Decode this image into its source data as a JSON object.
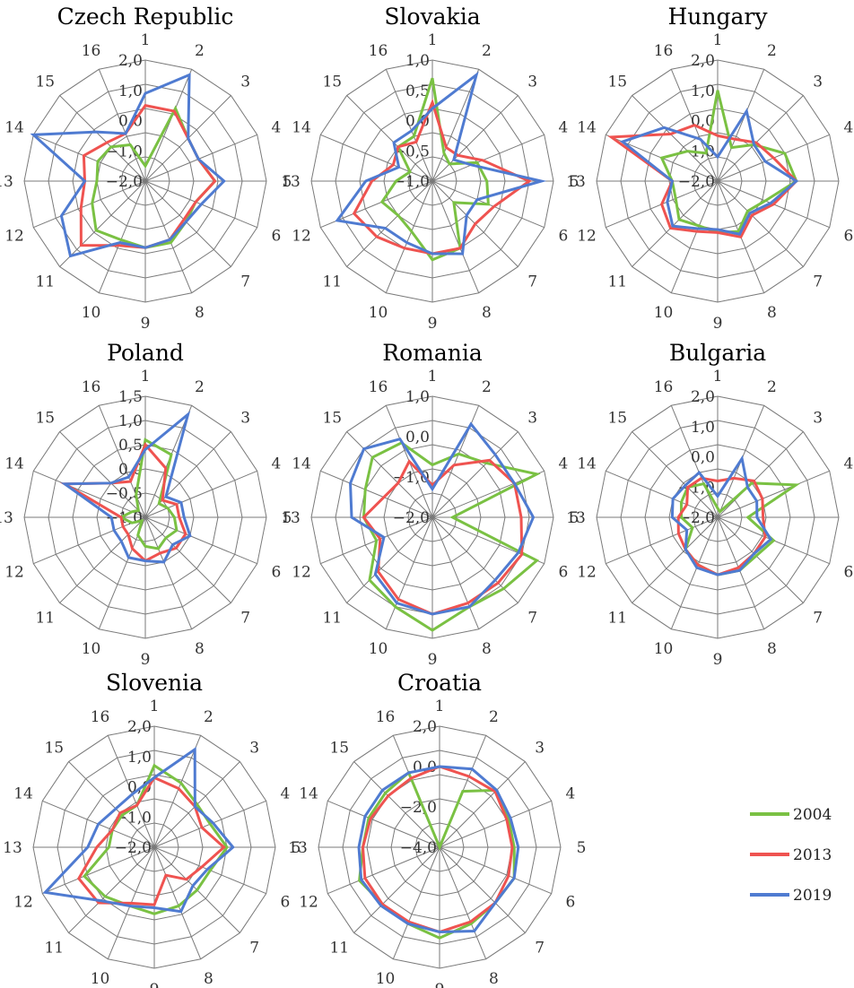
{
  "figure": {
    "legend": [
      {
        "name": "2004",
        "color": "#7ac143"
      },
      {
        "name": "2013",
        "color": "#ef5350"
      },
      {
        "name": "2019",
        "color": "#4f7bd1"
      }
    ]
  },
  "chart_data": [
    {
      "type": "radar",
      "title": "Czech Republic",
      "categories": [
        "1",
        "2",
        "3",
        "4",
        "5",
        "6",
        "7",
        "8",
        "9",
        "10",
        "11",
        "12",
        "13",
        "14",
        "15",
        "16"
      ],
      "rlim": [
        -2.0,
        2.0
      ],
      "ticks": [
        "−2,0",
        "−1,0",
        "0,0",
        "1,0",
        "2,0"
      ],
      "series": [
        {
          "name": "2004",
          "values": [
            -1.5,
            0.6,
            0.0,
            -0.1,
            0.3,
            -0.2,
            -0.1,
            0.2,
            0.2,
            0.1,
            0.3,
            -0.1,
            -0.4,
            -0.3,
            -0.4,
            -0.7
          ]
        },
        {
          "name": "2013",
          "values": [
            0.5,
            0.5,
            0.0,
            -0.1,
            0.3,
            -0.2,
            -0.2,
            0.1,
            0.2,
            0.3,
            1.0,
            0.3,
            0.0,
            0.2,
            -0.2,
            -0.3
          ]
        },
        {
          "name": "2019",
          "values": [
            0.9,
            1.8,
            0.0,
            -0.1,
            0.6,
            0.0,
            -0.1,
            0.1,
            0.2,
            0.2,
            1.5,
            1.0,
            0.0,
            2.0,
            0.3,
            -0.3
          ]
        }
      ]
    },
    {
      "type": "radar",
      "title": "Slovakia",
      "categories": [
        "1",
        "2",
        "3",
        "4",
        "5",
        "6",
        "7",
        "8",
        "9",
        "10",
        "11",
        "12",
        "13",
        "14",
        "15",
        "16"
      ],
      "rlim": [
        -1.0,
        1.0
      ],
      "ticks": [
        "−1,0",
        "−0,5",
        "0,0",
        "0,5",
        "1,0"
      ],
      "series": [
        {
          "name": "2004",
          "values": [
            0.7,
            -0.5,
            -0.6,
            -0.2,
            -0.1,
            0.0,
            -0.5,
            0.2,
            0.3,
            -0.1,
            -0.2,
            -0.1,
            -0.4,
            -0.6,
            -0.2,
            -0.2
          ]
        },
        {
          "name": "2013",
          "values": [
            0.3,
            -0.4,
            -0.4,
            -0.1,
            0.6,
            0.1,
            0.0,
            0.2,
            0.2,
            0.2,
            0.3,
            0.4,
            0.0,
            -0.3,
            -0.2,
            -0.3
          ]
        },
        {
          "name": "2019",
          "values": [
            0.2,
            0.9,
            -0.5,
            -0.3,
            0.8,
            -0.2,
            -0.2,
            0.3,
            0.2,
            0.1,
            0.1,
            0.7,
            0.1,
            -0.4,
            -0.1,
            -0.1
          ]
        }
      ]
    },
    {
      "type": "radar",
      "title": "Hungary",
      "categories": [
        "1",
        "2",
        "3",
        "4",
        "5",
        "6",
        "7",
        "8",
        "9",
        "10",
        "11",
        "12",
        "13",
        "14",
        "15",
        "16"
      ],
      "rlim": [
        -2.0,
        2.0
      ],
      "ticks": [
        "−2,0",
        "−1,0",
        "0,0",
        "1,0",
        "2,0"
      ],
      "series": [
        {
          "name": "2004",
          "values": [
            1.0,
            -0.8,
            -0.3,
            0.4,
            0.6,
            -0.3,
            -0.6,
            -0.2,
            -0.3,
            -0.4,
            -0.2,
            -0.5,
            -0.5,
            0.0,
            -0.6,
            -1.0
          ]
        },
        {
          "name": "2013",
          "values": [
            -0.5,
            -0.5,
            -0.2,
            0.0,
            0.6,
            0.0,
            -0.4,
            0.0,
            -0.3,
            -0.2,
            0.2,
            0.0,
            -0.5,
            1.8,
            0.2,
            0.0
          ]
        },
        {
          "name": "2019",
          "values": [
            -1.2,
            0.5,
            -0.3,
            -0.3,
            0.6,
            -0.1,
            -0.5,
            -0.1,
            -0.4,
            -0.3,
            0.1,
            -0.2,
            -0.5,
            1.4,
            0.5,
            -0.5
          ]
        }
      ]
    },
    {
      "type": "radar",
      "title": "Poland",
      "categories": [
        "1",
        "2",
        "3",
        "4",
        "5",
        "6",
        "7",
        "8",
        "9",
        "10",
        "11",
        "12",
        "13",
        "14",
        "15",
        "16"
      ],
      "rlim": [
        -1.0,
        1.5
      ],
      "ticks": [
        "−1,0",
        "−0,5",
        "0,0",
        "0,5",
        "1,0",
        "1,5"
      ],
      "series": [
        {
          "name": "2004",
          "values": [
            0.6,
            0.4,
            -0.6,
            -0.5,
            -0.4,
            -0.3,
            -0.4,
            -0.3,
            -0.4,
            -0.6,
            -0.9,
            -0.7,
            -0.5,
            -0.7,
            -0.8,
            -0.5
          ]
        },
        {
          "name": "2013",
          "values": [
            0.5,
            0.1,
            -0.5,
            -0.3,
            -0.3,
            -0.1,
            -0.1,
            -0.2,
            -0.1,
            -0.3,
            -0.5,
            -0.5,
            -0.5,
            0.8,
            0.0,
            -0.2
          ]
        },
        {
          "name": "2019",
          "values": [
            0.4,
            1.3,
            -0.4,
            -0.2,
            -0.2,
            0.0,
            -0.2,
            0.0,
            -0.1,
            -0.1,
            -0.3,
            -0.3,
            -0.3,
            0.8,
            0.0,
            -0.1
          ]
        }
      ]
    },
    {
      "type": "radar",
      "title": "Romania",
      "categories": [
        "1",
        "2",
        "3",
        "4",
        "5",
        "6",
        "7",
        "8",
        "9",
        "10",
        "11",
        "12",
        "13",
        "14",
        "15",
        "16"
      ],
      "rlim": [
        -2.0,
        1.0
      ],
      "ticks": [
        "−2,0",
        "−1,0",
        "0,0",
        "1,0"
      ],
      "series": [
        {
          "name": "2004",
          "values": [
            -0.7,
            -0.3,
            -0.1,
            0.8,
            -1.5,
            0.8,
            0.5,
            0.4,
            0.8,
            0.4,
            0.2,
            -0.5,
            -0.3,
            -0.2,
            0.1,
            0.0
          ]
        },
        {
          "name": "2013",
          "values": [
            -1.2,
            -0.6,
            0.0,
            0.2,
            0.2,
            0.4,
            0.3,
            0.3,
            0.4,
            0.2,
            -0.1,
            -0.6,
            -0.3,
            -0.7,
            -0.8,
            -0.5
          ]
        },
        {
          "name": "2019",
          "values": [
            -1.3,
            0.5,
            0.2,
            0.2,
            0.5,
            0.3,
            0.2,
            0.4,
            0.4,
            0.3,
            0.0,
            -0.7,
            0.0,
            0.2,
            0.4,
            0.1
          ]
        }
      ]
    },
    {
      "type": "radar",
      "title": "Bulgaria",
      "categories": [
        "1",
        "2",
        "3",
        "4",
        "5",
        "6",
        "7",
        "8",
        "9",
        "10",
        "11",
        "12",
        "13",
        "14",
        "15",
        "16"
      ],
      "rlim": [
        -2.0,
        2.0
      ],
      "ticks": [
        "−2,0",
        "−1,0",
        "0,0",
        "1,0",
        "2,0"
      ],
      "series": [
        {
          "name": "2004",
          "values": [
            -1.7,
            -1.8,
            -0.4,
            0.8,
            -1.0,
            0.0,
            -0.2,
            -0.1,
            -0.1,
            -0.3,
            -0.5,
            -1.1,
            -0.8,
            -0.7,
            -0.6,
            -0.8
          ]
        },
        {
          "name": "2013",
          "values": [
            -0.8,
            -0.6,
            -0.3,
            -0.4,
            -0.5,
            -0.3,
            -0.3,
            -0.2,
            -0.1,
            -0.3,
            -0.5,
            -0.6,
            -0.7,
            -0.9,
            -0.6,
            -0.6
          ]
        },
        {
          "name": "2019",
          "values": [
            -1.3,
            0.1,
            -0.6,
            -0.6,
            -0.7,
            -0.1,
            -0.3,
            -0.1,
            -0.1,
            -0.2,
            -0.5,
            -0.9,
            -0.5,
            -0.4,
            -0.5,
            -0.4
          ]
        }
      ]
    },
    {
      "type": "radar",
      "title": "Slovenia",
      "categories": [
        "1",
        "2",
        "3",
        "4",
        "5",
        "6",
        "7",
        "8",
        "9",
        "10",
        "11",
        "12",
        "13",
        "14",
        "15",
        "16"
      ],
      "rlim": [
        -2.0,
        2.0
      ],
      "ticks": [
        "−2,0",
        "−1,0",
        "0,0",
        "1,0",
        "2,0"
      ],
      "series": [
        {
          "name": "2004",
          "values": [
            0.7,
            0.3,
            0.0,
            0.0,
            0.4,
            0.0,
            0.0,
            0.1,
            0.2,
            0.1,
            0.3,
            0.5,
            -0.5,
            -0.5,
            -0.5,
            -0.5
          ]
        },
        {
          "name": "2013",
          "values": [
            0.3,
            0.1,
            -0.1,
            -0.3,
            0.3,
            -0.3,
            -0.5,
            -1.0,
            -0.1,
            0.0,
            0.6,
            0.7,
            -0.1,
            -0.5,
            -0.4,
            -0.5
          ]
        },
        {
          "name": "2019",
          "values": [
            0.3,
            1.5,
            -0.1,
            0.1,
            0.6,
            -0.1,
            -0.2,
            0.3,
            0.0,
            0.1,
            0.5,
            1.9,
            0.2,
            0.0,
            -0.2,
            -0.1
          ]
        }
      ]
    },
    {
      "type": "radar",
      "title": "Croatia",
      "categories": [
        "1",
        "2",
        "3",
        "4",
        "5",
        "6",
        "7",
        "8",
        "9",
        "10",
        "11",
        "12",
        "13",
        "14",
        "15",
        "16"
      ],
      "rlim": [
        -4.0,
        2.0
      ],
      "ticks": [
        "−4,0",
        "−2,0",
        "0,0",
        "2,0"
      ],
      "series": [
        {
          "name": "2004",
          "values": [
            -4.0,
            -1.0,
            0.0,
            -0.3,
            -0.3,
            0.0,
            -0.1,
            0.1,
            0.5,
            0.1,
            0.0,
            0.3,
            -0.2,
            -0.2,
            -0.2,
            0.0
          ]
        },
        {
          "name": "2013",
          "values": [
            0.0,
            -0.2,
            -0.1,
            -0.4,
            -0.4,
            -0.3,
            -0.1,
            0.0,
            0.2,
            0.0,
            0.0,
            0.0,
            -0.2,
            -0.3,
            -0.4,
            -0.3
          ]
        },
        {
          "name": "2019",
          "values": [
            0.0,
            0.2,
            0.0,
            -0.2,
            -0.1,
            0.0,
            -0.1,
            0.5,
            0.2,
            0.1,
            0.1,
            0.2,
            0.0,
            0.0,
            0.0,
            0.0
          ]
        }
      ]
    }
  ]
}
